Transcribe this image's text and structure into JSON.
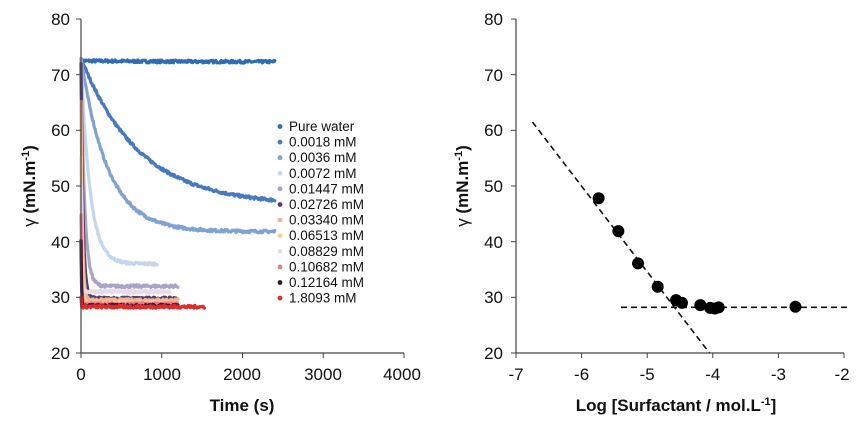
{
  "chart_data": [
    {
      "type": "line",
      "xlabel": "Time (s)",
      "ylabel_symbol": "γ",
      "ylabel_text": "(mN.m",
      "ylabel_sup": "-1",
      "ylabel_close": ")",
      "xlim": [
        0,
        4000
      ],
      "ylim": [
        20,
        80
      ],
      "xticks": [
        "0",
        "1000",
        "2000",
        "3000",
        "4000"
      ],
      "yticks": [
        "20",
        "30",
        "40",
        "50",
        "60",
        "70",
        "80"
      ],
      "grid": false,
      "legend_position": "right",
      "series": [
        {
          "name": "Pure water",
          "color": "#2e6db3",
          "t_end": 2400,
          "y0": 72.5,
          "y_inf": 72.3,
          "tau": 1000
        },
        {
          "name": "0.0018 mM",
          "color": "#4679bf",
          "t_end": 2400,
          "y0": 73.0,
          "y_inf": 46.5,
          "tau": 720
        },
        {
          "name": "0.0036 mM",
          "color": "#7fa2d3",
          "t_end": 2400,
          "y0": 73.0,
          "y_inf": 41.8,
          "tau": 330
        },
        {
          "name": "0.0072 mM",
          "color": "#c4d6ec",
          "t_end": 950,
          "y0": 73.0,
          "y_inf": 36.0,
          "tau": 110
        },
        {
          "name": "0.01447 mM",
          "color": "#a9a3c7",
          "t_end": 1200,
          "y0": 73.0,
          "y_inf": 32.0,
          "tau": 45
        },
        {
          "name": "0.02726 mM",
          "color": "#4e3f6e",
          "t_end": 1200,
          "y0": 72.0,
          "y_inf": 29.8,
          "tau": 25
        },
        {
          "name": "0.03340 mM",
          "color": "#f2b48c",
          "t_end": 1200,
          "y0": 65.0,
          "y_inf": 29.5,
          "tau": 18
        },
        {
          "name": "0.06513 mM",
          "color": "#f7c9a6",
          "t_end": 1100,
          "y0": 55.0,
          "y_inf": 29.0,
          "tau": 12
        },
        {
          "name": "0.08829 mM",
          "color": "#e6dbe6",
          "t_end": 1100,
          "y0": 50.0,
          "y_inf": 31.0,
          "tau": 10
        },
        {
          "name": "0.10682 mM",
          "color": "#e3808a",
          "t_end": 1200,
          "y0": 45.0,
          "y_inf": 28.8,
          "tau": 8
        },
        {
          "name": "0.12164 mM",
          "color": "#3c1530",
          "t_end": 1200,
          "y0": 40.0,
          "y_inf": 28.5,
          "tau": 6
        },
        {
          "name": "1.8093 mM",
          "color": "#e02b2b",
          "t_end": 1530,
          "y0": 30.0,
          "y_inf": 28.3,
          "tau": 4
        }
      ]
    },
    {
      "type": "scatter",
      "xlabel_main": "Log [Surfactant / mol.L",
      "xlabel_sup": "-1",
      "xlabel_close": "]",
      "ylabel_symbol": "γ",
      "ylabel_text": "(mN.m",
      "ylabel_sup": "-1",
      "ylabel_close": ")",
      "xlim": [
        -7,
        -2
      ],
      "ylim": [
        20,
        80
      ],
      "xticks": [
        "-7",
        "-6",
        "-5",
        "-4",
        "-3",
        "-2"
      ],
      "yticks": [
        "20",
        "30",
        "40",
        "50",
        "60",
        "70",
        "80"
      ],
      "grid": false,
      "points": [
        {
          "x": -5.74,
          "y": 47.8
        },
        {
          "x": -5.44,
          "y": 41.9
        },
        {
          "x": -5.14,
          "y": 36.1
        },
        {
          "x": -4.84,
          "y": 31.9
        },
        {
          "x": -4.56,
          "y": 29.5
        },
        {
          "x": -4.47,
          "y": 29.0
        },
        {
          "x": -4.19,
          "y": 28.6
        },
        {
          "x": -4.04,
          "y": 28.1
        },
        {
          "x": -3.97,
          "y": 28.0
        },
        {
          "x": -3.91,
          "y": 28.2
        },
        {
          "x": -2.74,
          "y": 28.3
        }
      ],
      "fit_lines": [
        {
          "x": [
            -6.75,
            -4.05
          ],
          "y": [
            61.5,
            20.0
          ],
          "style": "dashed"
        },
        {
          "x": [
            -5.4,
            -1.95
          ],
          "y": [
            28.2,
            28.2
          ],
          "style": "dashed"
        }
      ]
    }
  ]
}
